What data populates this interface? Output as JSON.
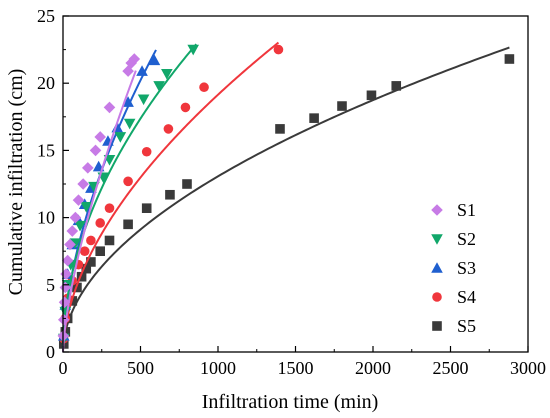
{
  "chart_data": {
    "type": "scatter",
    "title": "",
    "xlabel": "Infiltration time (min)",
    "ylabel": "Cumulative infiltration (cm)",
    "xlim": [
      0,
      3000
    ],
    "ylim": [
      0,
      25
    ],
    "xticks": [
      0,
      500,
      1000,
      1500,
      2000,
      2500,
      3000
    ],
    "yticks": [
      0,
      5,
      10,
      15,
      20,
      25
    ],
    "grid": false,
    "legend_position": "bottom-right",
    "series": [
      {
        "name": "S1",
        "marker": "diamond",
        "color": "#c77be6",
        "points": [
          [
            2,
            1.2
          ],
          [
            5,
            2.4
          ],
          [
            10,
            3.7
          ],
          [
            15,
            4.8
          ],
          [
            20,
            5.8
          ],
          [
            30,
            6.8
          ],
          [
            45,
            8.0
          ],
          [
            60,
            9.0
          ],
          [
            80,
            10.0
          ],
          [
            100,
            11.3
          ],
          [
            130,
            12.5
          ],
          [
            160,
            13.7
          ],
          [
            210,
            15.0
          ],
          [
            240,
            16.0
          ],
          [
            300,
            18.2
          ],
          [
            420,
            20.9
          ],
          [
            440,
            21.5
          ],
          [
            460,
            21.8
          ]
        ],
        "fit": {
          "a": 0.3,
          "b": 0.69,
          "xmax": 470
        }
      },
      {
        "name": "S2",
        "marker": "triangle-down",
        "color": "#11a76a",
        "points": [
          [
            5,
            1.0
          ],
          [
            15,
            3.0
          ],
          [
            30,
            5.0
          ],
          [
            50,
            6.5
          ],
          [
            80,
            8.1
          ],
          [
            110,
            9.4
          ],
          [
            150,
            10.8
          ],
          [
            200,
            12.3
          ],
          [
            260,
            13.0
          ],
          [
            300,
            14.3
          ],
          [
            370,
            16.0
          ],
          [
            430,
            17.0
          ],
          [
            520,
            18.8
          ],
          [
            620,
            19.8
          ],
          [
            670,
            20.7
          ],
          [
            840,
            22.5
          ]
        ],
        "fit": {
          "a": 0.73,
          "b": 0.51,
          "xmax": 860
        }
      },
      {
        "name": "S3",
        "marker": "triangle-up",
        "color": "#1f5fcf",
        "points": [
          [
            5,
            1.2
          ],
          [
            15,
            3.5
          ],
          [
            30,
            5.8
          ],
          [
            60,
            8.0
          ],
          [
            100,
            9.8
          ],
          [
            140,
            11.0
          ],
          [
            180,
            12.2
          ],
          [
            230,
            13.8
          ],
          [
            290,
            15.7
          ],
          [
            350,
            16.7
          ],
          [
            420,
            18.6
          ],
          [
            510,
            20.9
          ],
          [
            590,
            21.7
          ]
        ],
        "fit": {
          "a": 0.55,
          "b": 0.58,
          "xmax": 600
        }
      },
      {
        "name": "S4",
        "marker": "circle",
        "color": "#f0363c",
        "points": [
          [
            5,
            1.0
          ],
          [
            15,
            2.5
          ],
          [
            30,
            4.0
          ],
          [
            60,
            5.3
          ],
          [
            100,
            6.5
          ],
          [
            140,
            7.5
          ],
          [
            180,
            8.3
          ],
          [
            240,
            9.6
          ],
          [
            300,
            10.7
          ],
          [
            420,
            12.7
          ],
          [
            540,
            14.9
          ],
          [
            680,
            16.6
          ],
          [
            790,
            18.2
          ],
          [
            910,
            19.7
          ],
          [
            1390,
            22.5
          ]
        ],
        "fit": {
          "a": 0.4,
          "b": 0.56,
          "xmax": 1390
        }
      },
      {
        "name": "S5",
        "marker": "square",
        "color": "#3a3a3a",
        "points": [
          [
            5,
            0.6
          ],
          [
            15,
            1.5
          ],
          [
            30,
            2.5
          ],
          [
            60,
            3.8
          ],
          [
            90,
            4.8
          ],
          [
            120,
            5.6
          ],
          [
            150,
            6.2
          ],
          [
            180,
            6.7
          ],
          [
            240,
            7.5
          ],
          [
            300,
            8.3
          ],
          [
            420,
            9.5
          ],
          [
            540,
            10.7
          ],
          [
            690,
            11.7
          ],
          [
            800,
            12.5
          ],
          [
            1400,
            16.6
          ],
          [
            1620,
            17.4
          ],
          [
            1800,
            18.3
          ],
          [
            1990,
            19.1
          ],
          [
            2150,
            19.8
          ],
          [
            2880,
            21.8
          ]
        ],
        "fit": {
          "a": 0.36,
          "b": 0.52,
          "xmax": 2880
        }
      }
    ]
  }
}
